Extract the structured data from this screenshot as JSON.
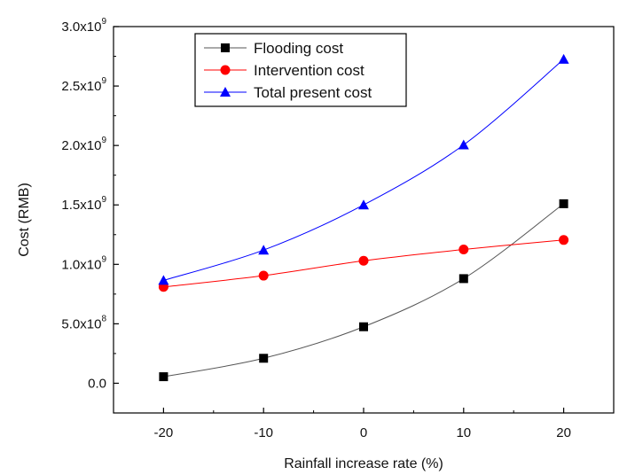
{
  "chart_data": {
    "type": "line",
    "xlabel": "Rainfall increase rate (%)",
    "ylabel": "Cost (RMB)",
    "x": [
      -20,
      -10,
      0,
      10,
      20
    ],
    "xlim": [
      -25,
      25
    ],
    "ylim": [
      -250000000,
      3000000000
    ],
    "x_ticks": [
      {
        "value": -20,
        "label": "-20"
      },
      {
        "value": -10,
        "label": "-10"
      },
      {
        "value": 0,
        "label": "0"
      },
      {
        "value": 10,
        "label": "10"
      },
      {
        "value": 20,
        "label": "20"
      }
    ],
    "y_ticks": [
      {
        "value": 0,
        "mantissa": "0.0",
        "exp": ""
      },
      {
        "value": 500000000,
        "mantissa": "5.0x10",
        "exp": "8"
      },
      {
        "value": 1000000000,
        "mantissa": "1.0x10",
        "exp": "9"
      },
      {
        "value": 1500000000,
        "mantissa": "1.5x10",
        "exp": "9"
      },
      {
        "value": 2000000000,
        "mantissa": "2.0x10",
        "exp": "9"
      },
      {
        "value": 2500000000,
        "mantissa": "2.5x10",
        "exp": "9"
      },
      {
        "value": 3000000000,
        "mantissa": "3.0x10",
        "exp": "9"
      }
    ],
    "series": [
      {
        "name": "Flooding cost",
        "marker": "square",
        "color": "#000000",
        "line_color": "#555555",
        "values": [
          55000000,
          210000000,
          475000000,
          880000000,
          1510000000
        ]
      },
      {
        "name": "Intervention cost",
        "marker": "circle",
        "color": "#ff0000",
        "line_color": "#ff0000",
        "values": [
          810000000,
          905000000,
          1030000000,
          1125000000,
          1205000000
        ]
      },
      {
        "name": "Total present cost",
        "marker": "triangle",
        "color": "#0000ff",
        "line_color": "#0000ff",
        "values": [
          865000000,
          1120000000,
          1500000000,
          2005000000,
          2725000000
        ]
      }
    ],
    "legend_position": "top-left",
    "grid": false
  }
}
